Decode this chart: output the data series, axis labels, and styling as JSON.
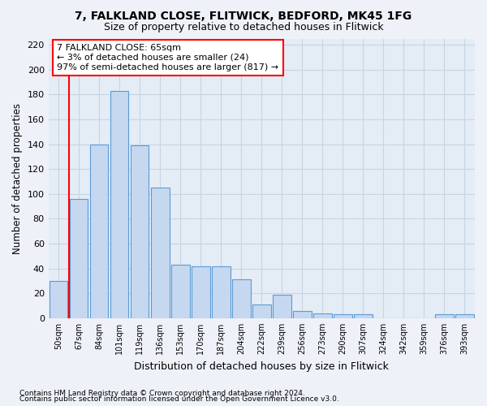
{
  "title1": "7, FALKLAND CLOSE, FLITWICK, BEDFORD, MK45 1FG",
  "title2": "Size of property relative to detached houses in Flitwick",
  "xlabel": "Distribution of detached houses by size in Flitwick",
  "ylabel": "Number of detached properties",
  "categories": [
    "50sqm",
    "67sqm",
    "84sqm",
    "101sqm",
    "119sqm",
    "136sqm",
    "153sqm",
    "170sqm",
    "187sqm",
    "204sqm",
    "222sqm",
    "239sqm",
    "256sqm",
    "273sqm",
    "290sqm",
    "307sqm",
    "324sqm",
    "342sqm",
    "359sqm",
    "376sqm",
    "393sqm"
  ],
  "values": [
    30,
    96,
    140,
    183,
    139,
    105,
    43,
    42,
    42,
    31,
    11,
    19,
    6,
    4,
    3,
    3,
    0,
    0,
    0,
    3,
    3
  ],
  "bar_color": "#c5d8f0",
  "bar_edge_color": "#5b9bd5",
  "grid_color": "#c8d4e4",
  "annotation_text_line1": "7 FALKLAND CLOSE: 65sqm",
  "annotation_text_line2": "← 3% of detached houses are smaller (24)",
  "annotation_text_line3": "97% of semi-detached houses are larger (817) →",
  "ylim": [
    0,
    225
  ],
  "yticks": [
    0,
    20,
    40,
    60,
    80,
    100,
    120,
    140,
    160,
    180,
    200,
    220
  ],
  "footnote1": "Contains HM Land Registry data © Crown copyright and database right 2024.",
  "footnote2": "Contains public sector information licensed under the Open Government Licence v3.0.",
  "background_color": "#eef2f8",
  "plot_background": "#e4ecf6"
}
